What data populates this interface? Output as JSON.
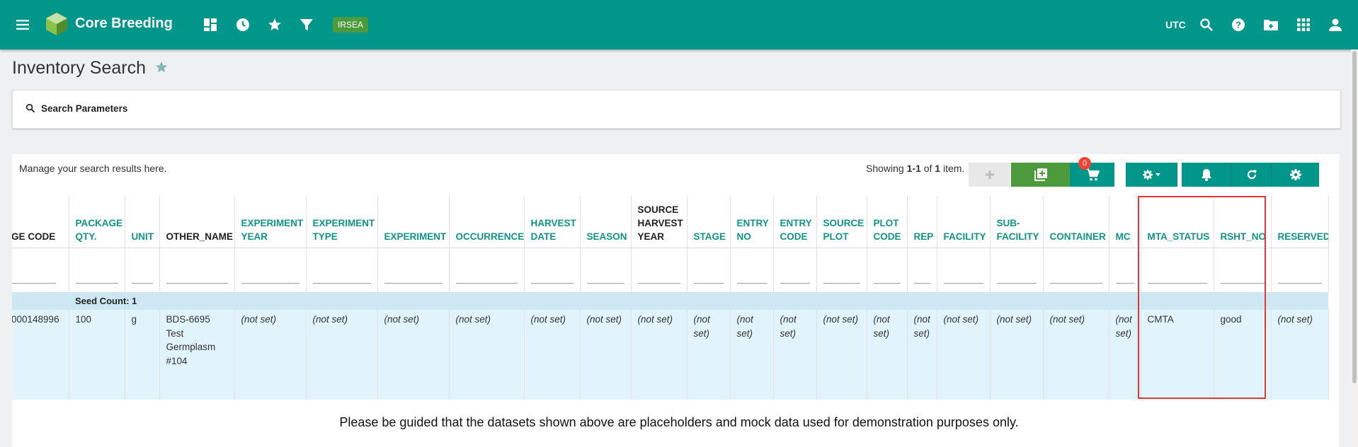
{
  "app": {
    "title": "Core Breeding",
    "program_tag": "IRSEA",
    "timezone": "UTC"
  },
  "page": {
    "title": "Inventory Search"
  },
  "search": {
    "label": "Search Parameters"
  },
  "results": {
    "manage_text": "Manage your search results here.",
    "showing_prefix": "Showing ",
    "showing_range": "1-1",
    "showing_mid": " of ",
    "showing_total": "1",
    "showing_suffix": " item.",
    "cart_count": "0"
  },
  "table": {
    "headers": [
      "GE CODE",
      "PACKAGE QTY.",
      "UNIT",
      "OTHER_NAME",
      "EXPERIMENT YEAR",
      "EXPERIMENT TYPE",
      "EXPERIMENT",
      "OCCURRENCE",
      "HARVEST DATE",
      "SEASON",
      "SOURCE HARVEST YEAR",
      "STAGE",
      "ENTRY NO",
      "ENTRY CODE",
      "SOURCE PLOT",
      "PLOT CODE",
      "REP",
      "FACILITY",
      "SUB-FACILITY",
      "CONTAINER",
      "MC",
      "MTA_STATUS",
      "RSHT_NO",
      "RESERVED"
    ],
    "group_label": "Seed Count: 1",
    "row": [
      "000148996",
      "100",
      "g",
      "BDS-6695 Test Germplasm #104",
      "(not set)",
      "(not set)",
      "(not set)",
      "(not set)",
      "(not set)",
      "(not set)",
      "(not set)",
      "(not set)",
      "(not set)",
      "(not set)",
      "(not set)",
      "(not set)",
      "(not set)",
      "(not set)",
      "(not set)",
      "(not set)",
      "(not set)",
      "CMTA",
      "good",
      "(not set)"
    ]
  },
  "disclaimer": "Please be guided that the datasets shown above are placeholders and mock data used for demonstration purposes only.",
  "colors": {
    "header_bg": "#00968a",
    "accent_green": "#4b9b3d",
    "highlight": "#e53935",
    "not_set": "#c0392b"
  }
}
